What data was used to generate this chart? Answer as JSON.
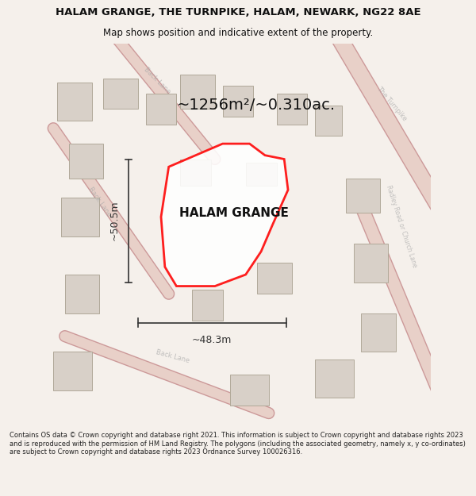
{
  "title": "HALAM GRANGE, THE TURNPIKE, HALAM, NEWARK, NG22 8AE",
  "subtitle": "Map shows position and indicative extent of the property.",
  "area_label": "~1256m²/~0.310ac.",
  "property_label": "HALAM GRANGE",
  "dim_horizontal": "~48.3m",
  "dim_vertical": "~50.5m",
  "footer": "Contains OS data © Crown copyright and database right 2021. This information is subject to Crown copyright and database rights 2023 and is reproduced with the permission of HM Land Registry. The polygons (including the associated geometry, namely x, y co-ordinates) are subject to Crown copyright and database rights 2023 Ordnance Survey 100026316.",
  "bg_color": "#f5f0eb",
  "map_bg": "#f0ece6",
  "building_color": "#d8d0c8",
  "road_color": "#e8d0c8",
  "road_outline": "#cc9999",
  "property_fill": "white",
  "property_edge": "red",
  "dim_color": "#333333",
  "label_color": "#111111",
  "footer_color": "#222222"
}
